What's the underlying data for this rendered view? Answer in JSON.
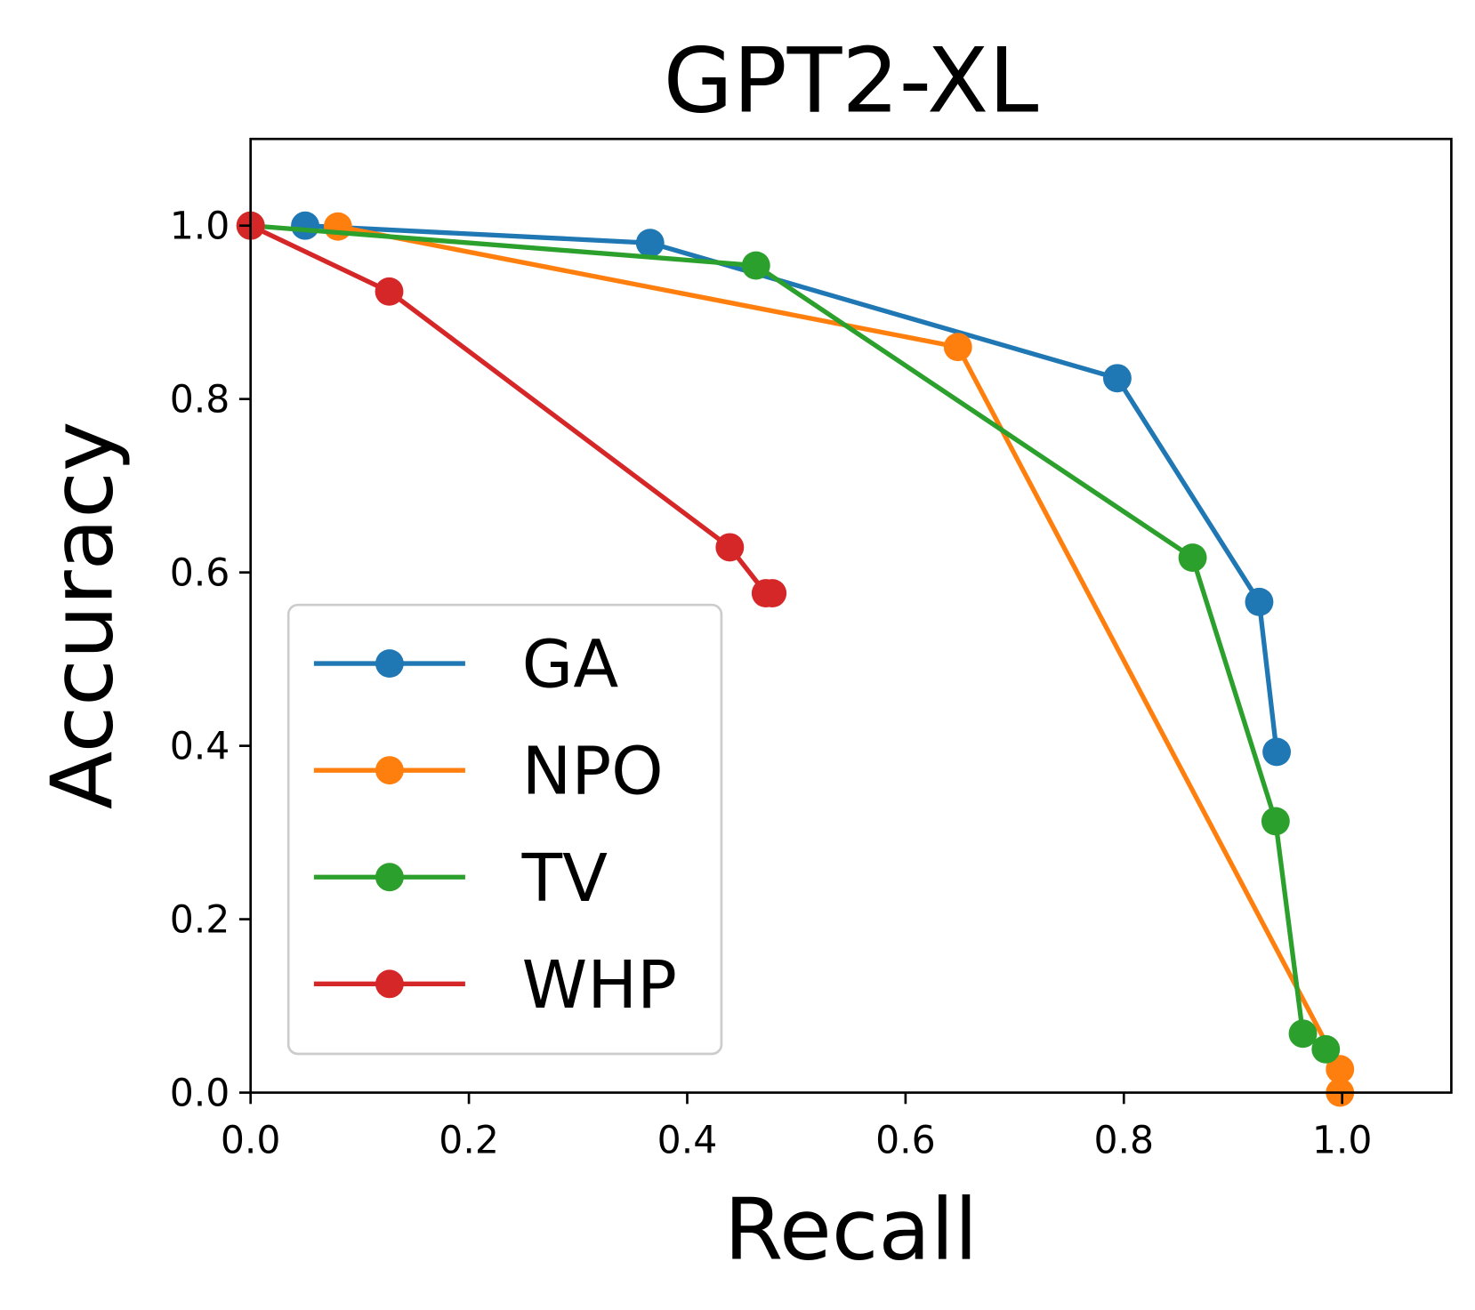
{
  "chart_data": {
    "type": "line",
    "title": "GPT2-XL",
    "xlabel": "Recall",
    "ylabel": "Accuracy",
    "xlim": [
      0,
      1.1
    ],
    "ylim": [
      0,
      1.1
    ],
    "grid": false,
    "legend_position": "lower-left",
    "xticks": [
      "0.0",
      "0.2",
      "0.4",
      "0.6",
      "0.8",
      "1.0"
    ],
    "yticks": [
      "0.0",
      "0.2",
      "0.4",
      "0.6",
      "0.8",
      "1.0"
    ],
    "series": [
      {
        "name": "GA",
        "color": "#1f77b4",
        "x": [
          0.05,
          0.366,
          0.794,
          0.924,
          0.94
        ],
        "y": [
          1.0,
          0.98,
          0.824,
          0.566,
          0.393
        ]
      },
      {
        "name": "NPO",
        "color": "#ff7f0e",
        "x": [
          0.08,
          0.648,
          0.998,
          0.998
        ],
        "y": [
          0.999,
          0.86,
          0.027,
          0.0
        ]
      },
      {
        "name": "TV",
        "color": "#2ca02c",
        "x": [
          0.0,
          0.463,
          0.863,
          0.939,
          0.964,
          0.985
        ],
        "y": [
          1.0,
          0.954,
          0.617,
          0.313,
          0.068,
          0.05
        ]
      },
      {
        "name": "WHP",
        "color": "#d62728",
        "x": [
          0.0,
          0.127,
          0.439,
          0.472,
          0.478
        ],
        "y": [
          1.0,
          0.924,
          0.629,
          0.576,
          0.576
        ]
      }
    ]
  }
}
